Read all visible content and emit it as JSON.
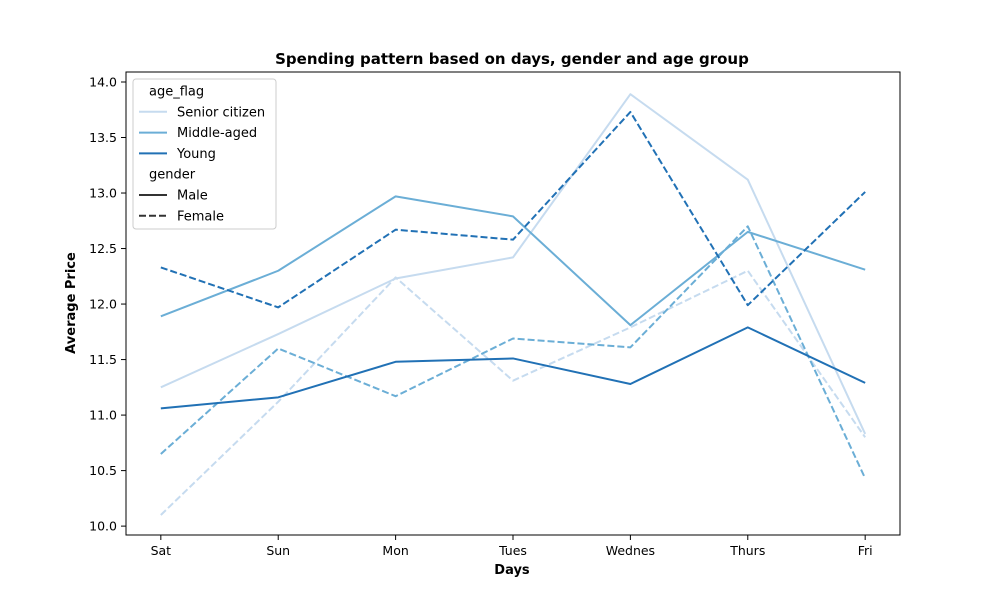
{
  "chart_data": {
    "type": "line",
    "title": "Spending pattern based on days, gender and age group",
    "xlabel": "Days",
    "ylabel": "Average Price",
    "categories": [
      "Sat",
      "Sun",
      "Mon",
      "Tues",
      "Wednes",
      "Thurs",
      "Fri"
    ],
    "ylim": [
      9.92,
      14.09
    ],
    "yticks": [
      "10.0",
      "10.5",
      "11.0",
      "11.5",
      "12.0",
      "12.5",
      "13.0",
      "13.5",
      "14.0"
    ],
    "grid": false,
    "legend_position": "top-left",
    "legend": {
      "hue_title": "age_flag",
      "hue_entries": [
        {
          "name": "Senior citizen",
          "color": "#c6dbef"
        },
        {
          "name": "Middle-aged",
          "color": "#6baed6"
        },
        {
          "name": "Young",
          "color": "#2171b5"
        }
      ],
      "style_title": "gender",
      "style_entries": [
        {
          "name": "Male",
          "dash": "solid"
        },
        {
          "name": "Female",
          "dash": "dashed"
        }
      ]
    },
    "series": [
      {
        "age_flag": "Senior citizen",
        "gender": "Male",
        "color": "#c6dbef",
        "dash": "solid",
        "values": [
          11.25,
          11.73,
          12.23,
          12.42,
          13.89,
          13.12,
          10.83
        ]
      },
      {
        "age_flag": "Senior citizen",
        "gender": "Female",
        "color": "#c6dbef",
        "dash": "dashed",
        "values": [
          10.1,
          11.12,
          12.24,
          11.31,
          11.79,
          12.3,
          10.8
        ]
      },
      {
        "age_flag": "Middle-aged",
        "gender": "Male",
        "color": "#6baed6",
        "dash": "solid",
        "values": [
          11.89,
          12.3,
          12.97,
          12.79,
          11.81,
          12.65,
          12.31
        ]
      },
      {
        "age_flag": "Middle-aged",
        "gender": "Female",
        "color": "#6baed6",
        "dash": "dashed",
        "values": [
          10.65,
          11.6,
          11.17,
          11.69,
          11.61,
          12.7,
          10.43
        ]
      },
      {
        "age_flag": "Young",
        "gender": "Male",
        "color": "#2171b5",
        "dash": "solid",
        "values": [
          11.06,
          11.16,
          11.48,
          11.51,
          11.28,
          11.79,
          11.29
        ]
      },
      {
        "age_flag": "Young",
        "gender": "Female",
        "color": "#2171b5",
        "dash": "dashed",
        "values": [
          12.33,
          11.97,
          12.67,
          12.58,
          13.73,
          11.99,
          13.01
        ]
      }
    ]
  }
}
